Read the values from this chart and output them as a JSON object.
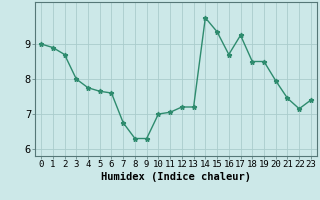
{
  "x": [
    0,
    1,
    2,
    3,
    4,
    5,
    6,
    7,
    8,
    9,
    10,
    11,
    12,
    13,
    14,
    15,
    16,
    17,
    18,
    19,
    20,
    21,
    22,
    23
  ],
  "y": [
    9.0,
    8.9,
    8.7,
    8.0,
    7.75,
    7.65,
    7.6,
    6.75,
    6.3,
    6.3,
    7.0,
    7.05,
    7.2,
    7.2,
    9.75,
    9.35,
    8.7,
    9.25,
    8.5,
    8.5,
    7.95,
    7.45,
    7.15,
    7.4
  ],
  "xlabel": "Humidex (Indice chaleur)",
  "ylabel": "",
  "ylim": [
    5.8,
    10.2
  ],
  "xlim": [
    -0.5,
    23.5
  ],
  "yticks": [
    6,
    7,
    8,
    9
  ],
  "xticks": [
    0,
    1,
    2,
    3,
    4,
    5,
    6,
    7,
    8,
    9,
    10,
    11,
    12,
    13,
    14,
    15,
    16,
    17,
    18,
    19,
    20,
    21,
    22,
    23
  ],
  "line_color": "#2e8b6e",
  "marker": "*",
  "bg_color": "#cce8e8",
  "grid_color": "#aacccc",
  "axis_color": "#557777",
  "xlabel_fontsize": 7.5,
  "tick_fontsize": 6.5,
  "ytick_fontsize": 7.5,
  "line_width": 1.0,
  "marker_size": 3.5
}
